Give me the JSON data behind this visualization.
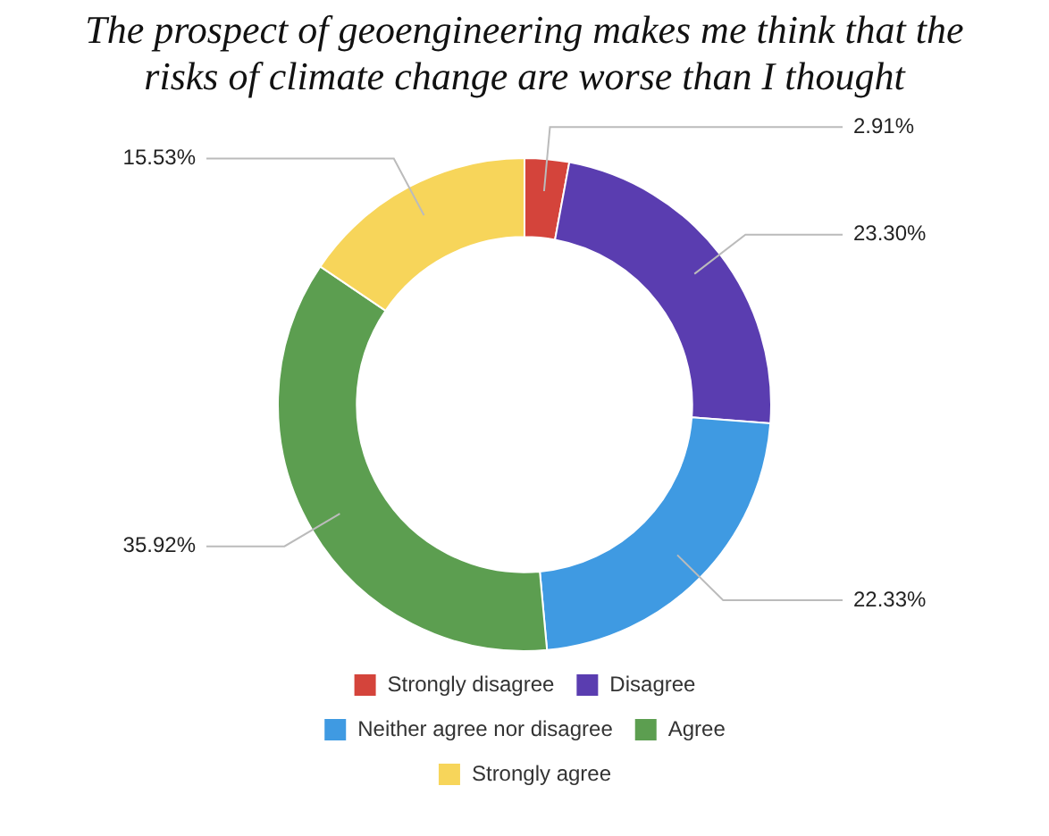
{
  "chart_data": {
    "type": "donut",
    "title": "The prospect of geoengineering makes me think that the risks of climate change are worse than I thought",
    "categories": [
      "Strongly disagree",
      "Disagree",
      "Neither agree nor disagree",
      "Agree",
      "Strongly agree"
    ],
    "values": [
      2.91,
      23.3,
      22.33,
      35.92,
      15.53
    ],
    "colors": [
      "#d4443b",
      "#5a3db0",
      "#3f9ae2",
      "#5c9e50",
      "#f7d55a"
    ],
    "value_labels": [
      "2.91%",
      "23.30%",
      "22.33%",
      "35.92%",
      "15.53%"
    ],
    "legend": "bottom"
  }
}
